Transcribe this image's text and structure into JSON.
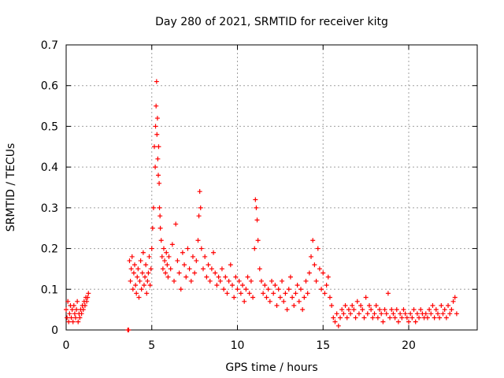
{
  "chart_data": {
    "type": "scatter",
    "title": "Day 280 of 2021, SRMTID for receiver kitg",
    "xlabel": "GPS time / hours",
    "ylabel": "SRMTID / TECUs",
    "xlim": [
      0,
      24
    ],
    "ylim": [
      0,
      0.7
    ],
    "xticks": [
      0,
      5,
      10,
      15,
      20
    ],
    "xtick_labels": [
      "0",
      "5",
      "10",
      "15",
      "20"
    ],
    "yticks": [
      0,
      0.1,
      0.2,
      0.3,
      0.4,
      0.5,
      0.6,
      0.7
    ],
    "ytick_labels": [
      "0",
      "0.1",
      "0.2",
      "0.3",
      "0.4",
      "0.5",
      "0.6",
      "0.7"
    ],
    "grid": true,
    "marker": "+",
    "series": [
      {
        "name": "SRMTID",
        "color": "#ff0000",
        "x": [
          0.0,
          0.05,
          0.1,
          0.15,
          0.2,
          0.25,
          0.3,
          0.35,
          0.4,
          0.45,
          0.5,
          0.55,
          0.6,
          0.65,
          0.7,
          0.75,
          0.8,
          0.85,
          0.9,
          0.95,
          1.0,
          1.05,
          1.1,
          1.15,
          1.2,
          1.25,
          1.3,
          3.6,
          3.65,
          3.7,
          3.75,
          3.8,
          3.85,
          3.9,
          3.95,
          4.0,
          4.05,
          4.1,
          4.15,
          4.2,
          4.25,
          4.3,
          4.35,
          4.4,
          4.45,
          4.5,
          4.55,
          4.6,
          4.65,
          4.7,
          4.75,
          4.8,
          4.85,
          4.9,
          4.95,
          5.0,
          5.05,
          5.1,
          5.15,
          5.2,
          5.22,
          5.25,
          5.28,
          5.3,
          5.33,
          5.35,
          5.38,
          5.4,
          5.43,
          5.45,
          5.48,
          5.5,
          5.55,
          5.6,
          5.65,
          5.7,
          5.75,
          5.8,
          5.85,
          5.9,
          5.95,
          6.0,
          6.1,
          6.2,
          6.3,
          6.4,
          6.5,
          6.6,
          6.7,
          6.8,
          6.9,
          7.0,
          7.1,
          7.2,
          7.3,
          7.4,
          7.5,
          7.6,
          7.7,
          7.75,
          7.8,
          7.85,
          7.9,
          8.0,
          8.1,
          8.2,
          8.3,
          8.4,
          8.5,
          8.6,
          8.7,
          8.8,
          8.9,
          9.0,
          9.1,
          9.2,
          9.3,
          9.4,
          9.5,
          9.6,
          9.7,
          9.8,
          9.9,
          10.0,
          10.1,
          10.2,
          10.3,
          10.4,
          10.5,
          10.6,
          10.7,
          10.8,
          10.9,
          11.0,
          11.05,
          11.1,
          11.15,
          11.2,
          11.3,
          11.4,
          11.5,
          11.6,
          11.7,
          11.8,
          11.9,
          12.0,
          12.1,
          12.2,
          12.3,
          12.4,
          12.5,
          12.6,
          12.7,
          12.8,
          12.9,
          13.0,
          13.1,
          13.2,
          13.3,
          13.4,
          13.5,
          13.6,
          13.7,
          13.8,
          13.9,
          14.0,
          14.1,
          14.2,
          14.3,
          14.4,
          14.5,
          14.6,
          14.7,
          14.8,
          14.9,
          15.0,
          15.1,
          15.2,
          15.3,
          15.4,
          15.5,
          15.6,
          15.7,
          15.8,
          15.9,
          16.0,
          16.1,
          16.2,
          16.3,
          16.4,
          16.5,
          16.6,
          16.7,
          16.8,
          16.9,
          17.0,
          17.1,
          17.2,
          17.3,
          17.4,
          17.5,
          17.6,
          17.7,
          17.8,
          17.9,
          18.0,
          18.1,
          18.2,
          18.3,
          18.4,
          18.5,
          18.6,
          18.7,
          18.8,
          18.9,
          19.0,
          19.1,
          19.2,
          19.3,
          19.4,
          19.5,
          19.6,
          19.7,
          19.8,
          19.9,
          20.0,
          20.1,
          20.2,
          20.3,
          20.4,
          20.5,
          20.6,
          20.7,
          20.8,
          20.9,
          21.0,
          21.1,
          21.2,
          21.3,
          21.4,
          21.5,
          21.6,
          21.7,
          21.8,
          21.9,
          22.0,
          22.1,
          22.2,
          22.3,
          22.4,
          22.5,
          22.6,
          22.7,
          22.8
        ],
        "y": [
          0.05,
          0.03,
          0.07,
          0.02,
          0.04,
          0.06,
          0.03,
          0.05,
          0.02,
          0.06,
          0.04,
          0.03,
          0.05,
          0.07,
          0.02,
          0.04,
          0.03,
          0.05,
          0.04,
          0.06,
          0.05,
          0.07,
          0.06,
          0.08,
          0.07,
          0.08,
          0.09,
          0.0,
          0.0,
          0.17,
          0.12,
          0.15,
          0.18,
          0.1,
          0.14,
          0.16,
          0.11,
          0.09,
          0.13,
          0.15,
          0.08,
          0.12,
          0.17,
          0.1,
          0.14,
          0.19,
          0.11,
          0.13,
          0.16,
          0.09,
          0.12,
          0.14,
          0.18,
          0.11,
          0.15,
          0.2,
          0.25,
          0.3,
          0.45,
          0.4,
          0.5,
          0.55,
          0.61,
          0.48,
          0.52,
          0.42,
          0.38,
          0.45,
          0.36,
          0.3,
          0.28,
          0.25,
          0.22,
          0.18,
          0.15,
          0.2,
          0.17,
          0.14,
          0.19,
          0.16,
          0.13,
          0.18,
          0.15,
          0.21,
          0.12,
          0.26,
          0.17,
          0.14,
          0.1,
          0.19,
          0.16,
          0.13,
          0.2,
          0.15,
          0.12,
          0.18,
          0.14,
          0.17,
          0.22,
          0.28,
          0.34,
          0.3,
          0.2,
          0.15,
          0.18,
          0.13,
          0.16,
          0.12,
          0.15,
          0.19,
          0.14,
          0.11,
          0.13,
          0.12,
          0.15,
          0.1,
          0.13,
          0.09,
          0.12,
          0.16,
          0.11,
          0.08,
          0.13,
          0.1,
          0.12,
          0.09,
          0.11,
          0.07,
          0.1,
          0.13,
          0.09,
          0.12,
          0.08,
          0.2,
          0.32,
          0.3,
          0.27,
          0.22,
          0.15,
          0.12,
          0.09,
          0.11,
          0.08,
          0.1,
          0.07,
          0.12,
          0.09,
          0.11,
          0.06,
          0.1,
          0.08,
          0.12,
          0.07,
          0.09,
          0.05,
          0.1,
          0.13,
          0.08,
          0.06,
          0.09,
          0.11,
          0.07,
          0.1,
          0.05,
          0.08,
          0.12,
          0.09,
          0.14,
          0.18,
          0.22,
          0.16,
          0.12,
          0.2,
          0.15,
          0.1,
          0.14,
          0.09,
          0.11,
          0.13,
          0.08,
          0.06,
          0.03,
          0.02,
          0.04,
          0.01,
          0.03,
          0.05,
          0.04,
          0.06,
          0.03,
          0.05,
          0.04,
          0.06,
          0.05,
          0.03,
          0.07,
          0.04,
          0.06,
          0.05,
          0.03,
          0.08,
          0.04,
          0.06,
          0.05,
          0.03,
          0.04,
          0.06,
          0.03,
          0.05,
          0.04,
          0.02,
          0.05,
          0.04,
          0.09,
          0.03,
          0.05,
          0.04,
          0.03,
          0.05,
          0.02,
          0.04,
          0.03,
          0.05,
          0.04,
          0.03,
          0.02,
          0.04,
          0.03,
          0.05,
          0.02,
          0.04,
          0.03,
          0.05,
          0.04,
          0.03,
          0.04,
          0.03,
          0.05,
          0.04,
          0.06,
          0.03,
          0.05,
          0.04,
          0.03,
          0.06,
          0.04,
          0.05,
          0.03,
          0.06,
          0.04,
          0.05,
          0.07,
          0.08,
          0.04
        ]
      }
    ]
  }
}
